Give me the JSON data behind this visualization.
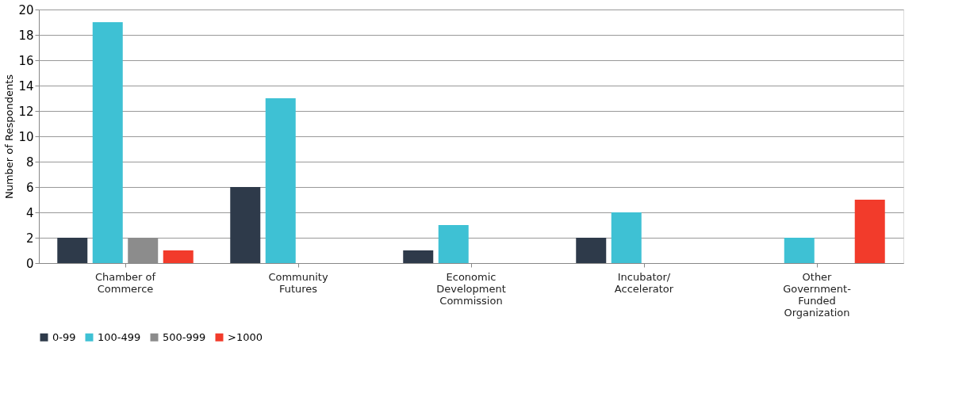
{
  "chart_data": {
    "type": "bar",
    "ylabel": "Number of Respondents",
    "categories": [
      "Chamber of\nCommerce",
      "Community\nFutures",
      "Economic\nDevelopment\nCommission",
      "Incubator/\nAccelerator",
      "Other\nGovernment-\nFunded\nOrganization"
    ],
    "series": [
      {
        "name": "0-99",
        "color": "#2e3a4a",
        "values": [
          2,
          6,
          1,
          2,
          0
        ]
      },
      {
        "name": "100-499",
        "color": "#3ec1d4",
        "values": [
          19,
          13,
          3,
          4,
          2
        ]
      },
      {
        "name": "500-999",
        "color": "#8c8c8c",
        "values": [
          2,
          0,
          0,
          0,
          0
        ]
      },
      {
        "name": ">1000",
        "color": "#f23b2b",
        "values": [
          1,
          0,
          0,
          0,
          5
        ]
      }
    ],
    "ylim": [
      0,
      20
    ],
    "yticks": [
      0,
      2,
      4,
      6,
      8,
      10,
      12,
      14,
      16,
      18,
      20
    ],
    "grid": "y",
    "legend": "bottom"
  }
}
